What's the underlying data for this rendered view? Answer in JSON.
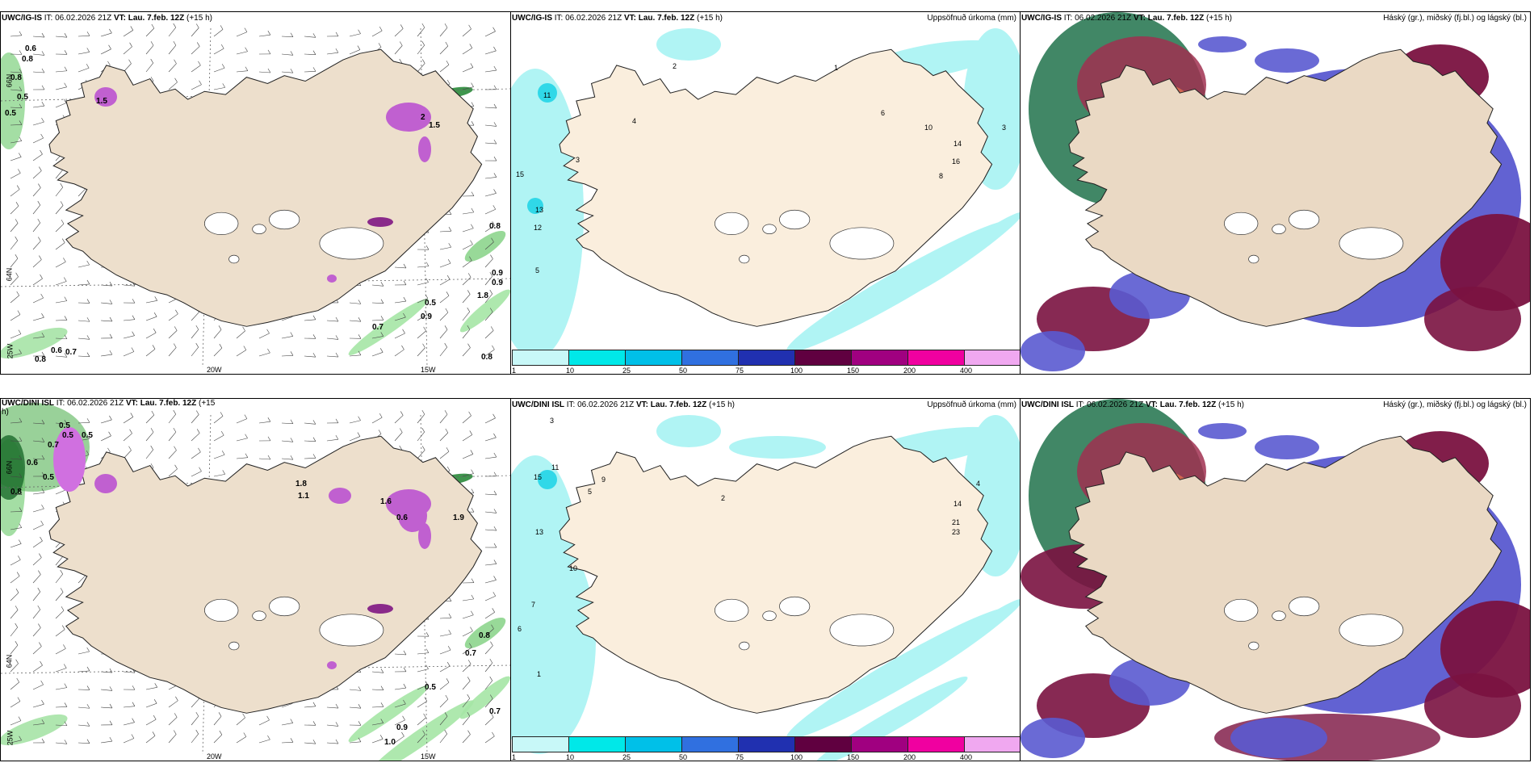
{
  "panels": {
    "p1": {
      "model": "UWC/IG-IS",
      "it_label": "IT:",
      "it_value": "06.02.2026 21Z",
      "vt_label": "VT:",
      "vt_value": "Lau. 7.feb. 12Z",
      "lead": "(+15 h)",
      "lon_labels": [
        "20W",
        "15W"
      ],
      "lat_labels": [
        "66N",
        "64N",
        "25W"
      ],
      "values": [
        "0.6",
        "0.8",
        "0.8",
        "0.5",
        "0.5",
        "1.5",
        "2",
        "1.5",
        "0.8",
        "0.9",
        "0.9",
        "1.8",
        "0.5",
        "0.9",
        "0.7",
        "0.8",
        "0.6",
        "0.7",
        "0.8"
      ]
    },
    "p2": {
      "model": "UWC/IG-IS",
      "it_label": "IT:",
      "it_value": "06.02.2026 21Z",
      "vt_label": "VT:",
      "vt_value": "Lau. 7.feb. 12Z",
      "lead": "(+15 h)",
      "right_title": "Uppsöfnuð úrkoma (mm)",
      "values": [
        "11",
        "15",
        "13",
        "12",
        "5",
        "3",
        "4",
        "2",
        "1",
        "6",
        "8",
        "10",
        "14",
        "16",
        "3"
      ]
    },
    "p3": {
      "model": "UWC/IG-IS",
      "it_label": "IT:",
      "it_value": "06.02.2026 21Z",
      "vt_label": "VT:",
      "vt_value": "Lau. 7.feb. 12Z",
      "lead": "(+15 h)",
      "right_title": "Háský (gr.), miðský (fj.bl.) og lágský (bl.)"
    },
    "p4": {
      "model": "UWC/DINI ISL",
      "it_label": "IT:",
      "it_value": "06.02.2026 21Z",
      "vt_label": "VT:",
      "vt_value": "Lau. 7.feb. 12Z",
      "lead_a": "(+15",
      "lead_b": "h)",
      "lon_labels": [
        "20W",
        "15W"
      ],
      "lat_labels": [
        "66N",
        "64N",
        "25W"
      ],
      "values": [
        "0.5",
        "0.5",
        "0.5",
        "0.7",
        "0.6",
        "0.8",
        "0.5",
        "1.8",
        "1.1",
        "1.6",
        "0.6",
        "1.9",
        "0.8",
        "0.7",
        "0.5",
        "0.7",
        "0.9",
        "1.0"
      ]
    },
    "p5": {
      "model": "UWC/DINI ISL",
      "it_label": "IT:",
      "it_value": "06.02.2026 21Z",
      "vt_label": "VT:",
      "vt_value": "Lau. 7.feb. 12Z",
      "lead": "(+15 h)",
      "right_title": "Uppsöfnuð úrkoma (mm)",
      "values": [
        "3",
        "11",
        "15",
        "13",
        "10",
        "9",
        "5",
        "7",
        "6",
        "1",
        "2",
        "14",
        "21",
        "23",
        "4"
      ]
    },
    "p6": {
      "model": "UWC/DINI ISL",
      "it_label": "IT:",
      "it_value": "06.02.2026 21Z",
      "vt_label": "VT:",
      "vt_value": "Lau. 7.feb. 12Z",
      "lead": "(+15 h)",
      "right_title": "Háský (gr.), miðský (fj.bl.) og lágský (bl.)"
    }
  },
  "colorbar": {
    "ticks": [
      "1",
      "10",
      "25",
      "50",
      "75",
      "100",
      "150",
      "200",
      "400"
    ],
    "colors": [
      "#c8f8f8",
      "#00e8e8",
      "#00c0e8",
      "#3070e0",
      "#2030b0",
      "#600040",
      "#a00080",
      "#f000a0",
      "#f0a8f0"
    ]
  },
  "colors": {
    "land": "#f0e0cc",
    "precip_light": "#b0f4f4",
    "cloud_high": "#7a1040",
    "cloud_mid": "#5050c8",
    "cloud_low": "#2a6a50"
  }
}
